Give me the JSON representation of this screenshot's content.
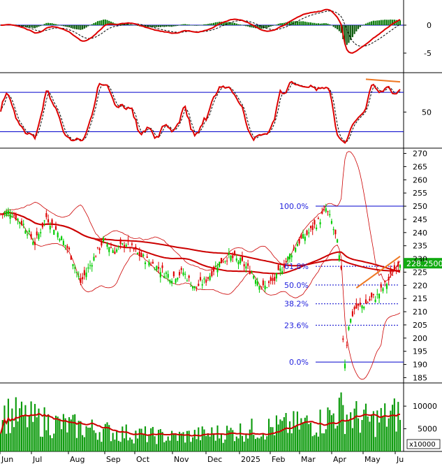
{
  "chart_data": {
    "type": "candlestick",
    "ticker_price_label": "228.2500",
    "x_tick_labels": [
      "Jun",
      "Jul",
      "Aug",
      "Sep",
      "Oct",
      "Nov",
      "Dec",
      "2025",
      "Feb",
      "Mar",
      "Apr",
      "May",
      "Ju"
    ],
    "volume_unit_label": "x10000",
    "panels": {
      "macd": {
        "y_ticks": [
          {
            "v": 0,
            "label": "0"
          },
          {
            "v": -5,
            "label": "-5"
          }
        ],
        "ylim": [
          -8.5,
          4.5
        ]
      },
      "stochastic": {
        "y_ticks": [
          {
            "v": 50,
            "label": "50"
          }
        ],
        "ylim": [
          -5,
          110
        ],
        "levels": [
          80,
          20
        ]
      },
      "price": {
        "y_ticks": [
          "270",
          "265",
          "260",
          "255",
          "250",
          "245",
          "240",
          "235",
          "230",
          "225",
          "220",
          "215",
          "210",
          "205",
          "200",
          "195",
          "190",
          "185"
        ],
        "ylim": [
          183,
          272
        ],
        "fibonacci": [
          {
            "level": "100.0%",
            "price": 250.0
          },
          {
            "level": "61.8%",
            "price": 227.2
          },
          {
            "level": "50.0%",
            "price": 220.1
          },
          {
            "level": "38.2%",
            "price": 213.0
          },
          {
            "level": "23.6%",
            "price": 204.9
          },
          {
            "level": "0.0%",
            "price": 190.9
          }
        ]
      },
      "volume": {
        "y_ticks": [
          {
            "v": 10000,
            "label": "10000"
          },
          {
            "v": 5000,
            "label": "5000"
          }
        ],
        "ylim": [
          0,
          14500
        ]
      }
    },
    "price_anchors": [
      [
        0,
        247
      ],
      [
        5,
        248
      ],
      [
        12,
        243
      ],
      [
        18,
        236
      ],
      [
        24,
        246
      ],
      [
        30,
        240
      ],
      [
        36,
        233
      ],
      [
        42,
        221
      ],
      [
        48,
        229
      ],
      [
        54,
        237
      ],
      [
        60,
        233
      ],
      [
        66,
        236
      ],
      [
        72,
        232
      ],
      [
        78,
        229
      ],
      [
        84,
        226
      ],
      [
        90,
        223
      ],
      [
        96,
        225
      ],
      [
        102,
        219
      ],
      [
        108,
        222
      ],
      [
        114,
        228
      ],
      [
        120,
        231
      ],
      [
        126,
        229
      ],
      [
        132,
        225
      ],
      [
        138,
        219
      ],
      [
        144,
        222
      ],
      [
        150,
        229
      ],
      [
        156,
        236
      ],
      [
        162,
        240
      ],
      [
        168,
        245
      ],
      [
        171,
        249
      ],
      [
        174,
        244
      ],
      [
        177,
        236
      ],
      [
        179,
        225
      ],
      [
        180,
        200
      ],
      [
        181,
        191
      ],
      [
        183,
        205
      ],
      [
        186,
        211
      ],
      [
        189,
        212
      ],
      [
        192,
        213
      ],
      [
        195,
        215
      ],
      [
        198,
        216
      ],
      [
        201,
        219
      ],
      [
        204,
        222
      ],
      [
        207,
        226
      ],
      [
        210,
        229
      ]
    ],
    "volume_anchors": [
      [
        0,
        8500
      ],
      [
        30,
        6000
      ],
      [
        60,
        4200
      ],
      [
        90,
        3200
      ],
      [
        120,
        4200
      ],
      [
        150,
        5600
      ],
      [
        168,
        6500
      ],
      [
        178,
        9000
      ],
      [
        185,
        7800
      ],
      [
        195,
        6600
      ],
      [
        205,
        7800
      ],
      [
        210,
        8300
      ]
    ],
    "moving_averages": [
      "MA20",
      "MA50",
      "MA200"
    ],
    "bollinger_bands": true,
    "colors": {
      "up_candle": "#00cc00",
      "down_candle": "#dd0000",
      "ma_line": "#cc0000",
      "band_line": "#cc0000",
      "fib_line": "#0000cc",
      "fib_label": "#2222dd",
      "volume_bar": "#0a9a0a",
      "macd_hist_pos": "#0a7a0a",
      "macd_hist_neg": "#0a5a0a",
      "macd_line": "#dd0000",
      "signal_line": "#000000",
      "trendline": "#ee7722",
      "price_tag_bg": "#11aa11"
    }
  }
}
